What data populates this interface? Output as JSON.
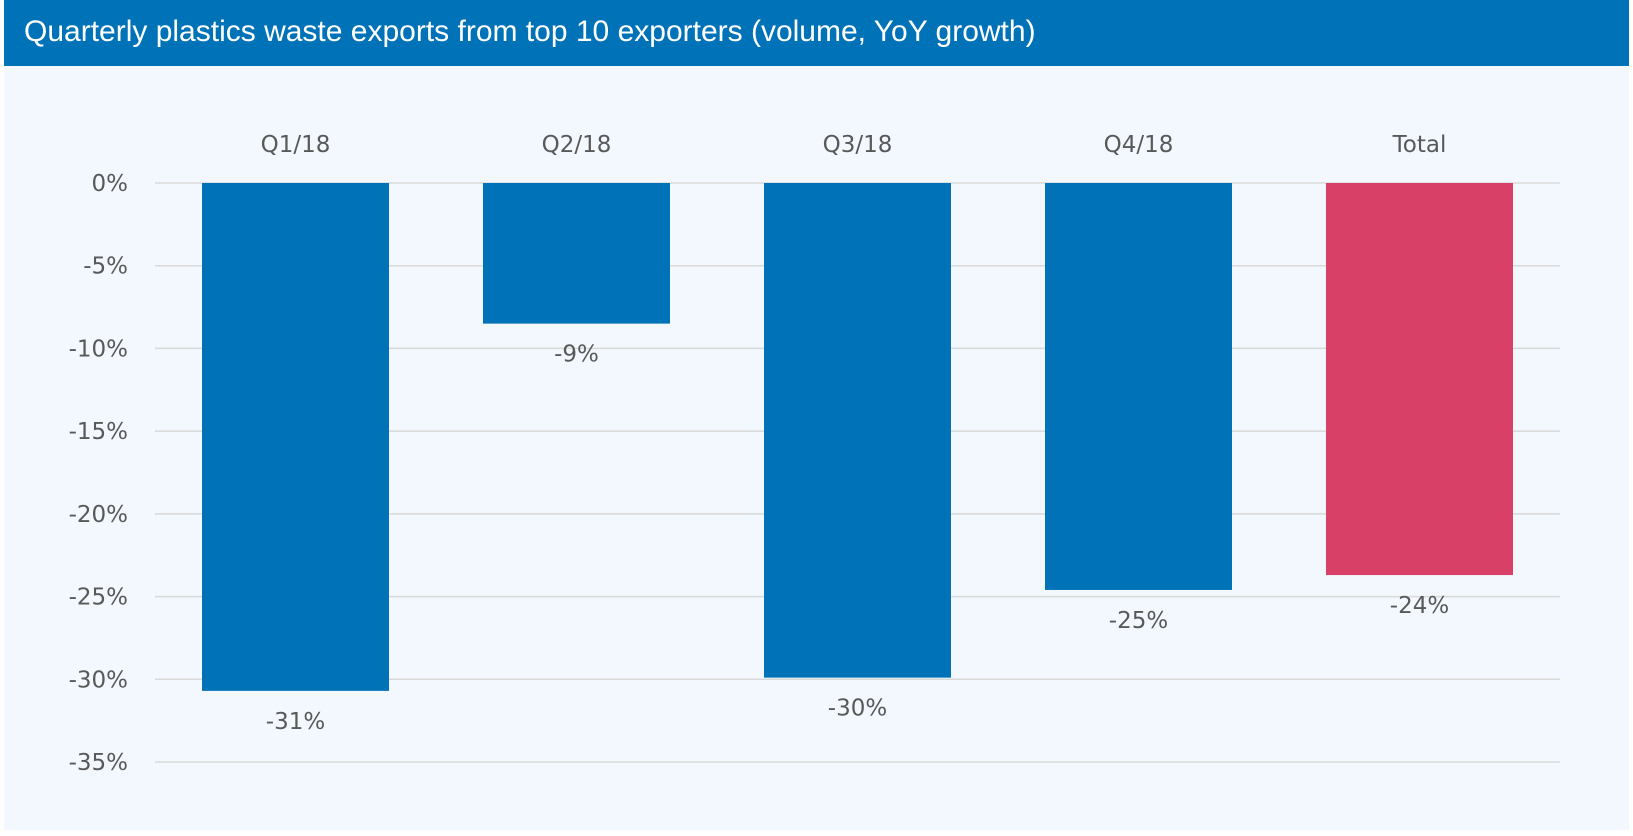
{
  "title": "Quarterly plastics waste exports from top 10 exporters (volume, YoY growth)",
  "colors": {
    "title_bar": "#0072b8",
    "bar": "#0072b8",
    "total_bar": "#d94068",
    "background": "#f2f8fd",
    "grid": "#d9d9d9"
  },
  "chart_data": {
    "type": "bar",
    "title": "Quarterly plastics waste exports from top 10 exporters (volume, YoY growth)",
    "categories": [
      "Q1/18",
      "Q2/18",
      "Q3/18",
      "Q4/18",
      "Total"
    ],
    "values": [
      -30.7,
      -8.5,
      -29.9,
      -24.6,
      -23.7
    ],
    "data_labels": [
      "-31%",
      "-9%",
      "-30%",
      "-25%",
      "-24%"
    ],
    "highlight": [
      false,
      false,
      false,
      false,
      true
    ],
    "ylim": [
      -35,
      0
    ],
    "yticks": [
      0,
      -5,
      -10,
      -15,
      -20,
      -25,
      -30,
      -35
    ],
    "ytick_labels": [
      "0%",
      "-5%",
      "-10%",
      "-15%",
      "-20%",
      "-25%",
      "-30%",
      "-35%"
    ],
    "category_axis_position": "top",
    "grid": true,
    "legend": "none"
  }
}
